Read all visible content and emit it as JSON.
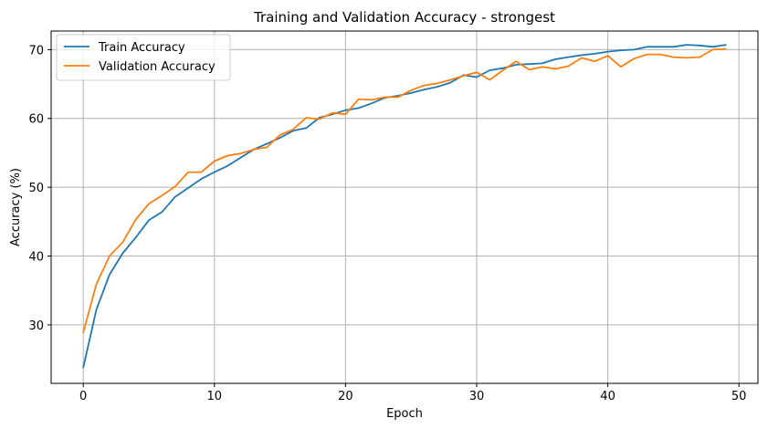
{
  "chart_data": {
    "type": "line",
    "title": "Training and Validation Accuracy - strongest",
    "xlabel": "Epoch",
    "ylabel": "Accuracy (%)",
    "xlim": [
      -2.45,
      51.45
    ],
    "ylim": [
      21.5,
      72.7
    ],
    "xticks": [
      0,
      10,
      20,
      30,
      40,
      50
    ],
    "yticks": [
      30,
      40,
      50,
      60,
      70
    ],
    "grid": true,
    "legend_position": "top-left",
    "x": [
      0,
      1,
      2,
      3,
      4,
      5,
      6,
      7,
      8,
      9,
      10,
      11,
      12,
      13,
      14,
      15,
      16,
      17,
      18,
      19,
      20,
      21,
      22,
      23,
      24,
      25,
      26,
      27,
      28,
      29,
      30,
      31,
      32,
      33,
      34,
      35,
      36,
      37,
      38,
      39,
      40,
      41,
      42,
      43,
      44,
      45,
      46,
      47,
      48,
      49
    ],
    "series": [
      {
        "name": "Train Accuracy",
        "color": "#1f77b4",
        "values": [
          23.8,
          32.2,
          37.3,
          40.4,
          42.7,
          45.2,
          46.4,
          48.6,
          49.9,
          51.2,
          52.2,
          53.1,
          54.3,
          55.5,
          56.3,
          57.2,
          58.2,
          58.6,
          60.1,
          60.6,
          61.2,
          61.5,
          62.2,
          63.0,
          63.3,
          63.7,
          64.2,
          64.6,
          65.2,
          66.3,
          66.0,
          67.0,
          67.3,
          67.8,
          67.9,
          68.0,
          68.6,
          68.9,
          69.2,
          69.4,
          69.7,
          69.9,
          70.0,
          70.4,
          70.4,
          70.4,
          70.7,
          70.6,
          70.4,
          70.7
        ]
      },
      {
        "name": "Validation Accuracy",
        "color": "#ff7f0e",
        "values": [
          28.9,
          35.9,
          40.0,
          42.0,
          45.3,
          47.6,
          48.8,
          50.1,
          52.2,
          52.2,
          53.8,
          54.6,
          54.9,
          55.5,
          55.8,
          57.6,
          58.4,
          60.1,
          59.9,
          60.8,
          60.6,
          62.8,
          62.7,
          63.1,
          63.1,
          64.1,
          64.8,
          65.1,
          65.6,
          66.2,
          66.7,
          65.6,
          67.0,
          68.3,
          67.1,
          67.5,
          67.2,
          67.6,
          68.8,
          68.3,
          69.1,
          67.5,
          68.7,
          69.3,
          69.3,
          68.9,
          68.8,
          68.9,
          70.0,
          70.1
        ]
      }
    ]
  }
}
